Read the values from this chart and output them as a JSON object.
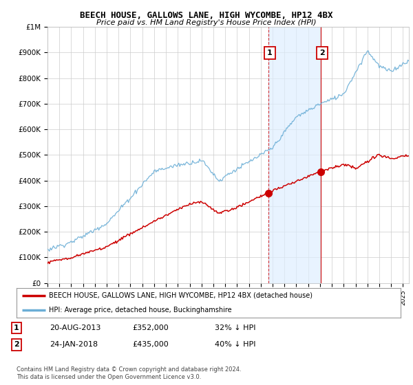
{
  "title": "BEECH HOUSE, GALLOWS LANE, HIGH WYCOMBE, HP12 4BX",
  "subtitle": "Price paid vs. HM Land Registry's House Price Index (HPI)",
  "ylabel_ticks": [
    "£0",
    "£100K",
    "£200K",
    "£300K",
    "£400K",
    "£500K",
    "£600K",
    "£700K",
    "£800K",
    "£900K",
    "£1M"
  ],
  "ytick_values": [
    0,
    100000,
    200000,
    300000,
    400000,
    500000,
    600000,
    700000,
    800000,
    900000,
    1000000
  ],
  "ylim": [
    0,
    1000000
  ],
  "xlim_start": 1995.0,
  "xlim_end": 2025.5,
  "hpi_color": "#6baed6",
  "price_color": "#cc0000",
  "shade_color": "#ddeeff",
  "purchase1_date": 2013.64,
  "purchase1_price": 352000,
  "purchase2_date": 2018.07,
  "purchase2_price": 435000,
  "legend_entry1": "BEECH HOUSE, GALLOWS LANE, HIGH WYCOMBE, HP12 4BX (detached house)",
  "legend_entry2": "HPI: Average price, detached house, Buckinghamshire",
  "table_row1": [
    "1",
    "20-AUG-2013",
    "£352,000",
    "32% ↓ HPI"
  ],
  "table_row2": [
    "2",
    "24-JAN-2018",
    "£435,000",
    "40% ↓ HPI"
  ],
  "footer1": "Contains HM Land Registry data © Crown copyright and database right 2024.",
  "footer2": "This data is licensed under the Open Government Licence v3.0.",
  "bg_color": "#ffffff",
  "grid_color": "#cccccc",
  "xtick_years": [
    1995,
    1996,
    1997,
    1998,
    1999,
    2000,
    2001,
    2002,
    2003,
    2004,
    2005,
    2006,
    2007,
    2008,
    2009,
    2010,
    2011,
    2012,
    2013,
    2014,
    2015,
    2016,
    2017,
    2018,
    2019,
    2020,
    2021,
    2022,
    2023,
    2024,
    2025
  ]
}
